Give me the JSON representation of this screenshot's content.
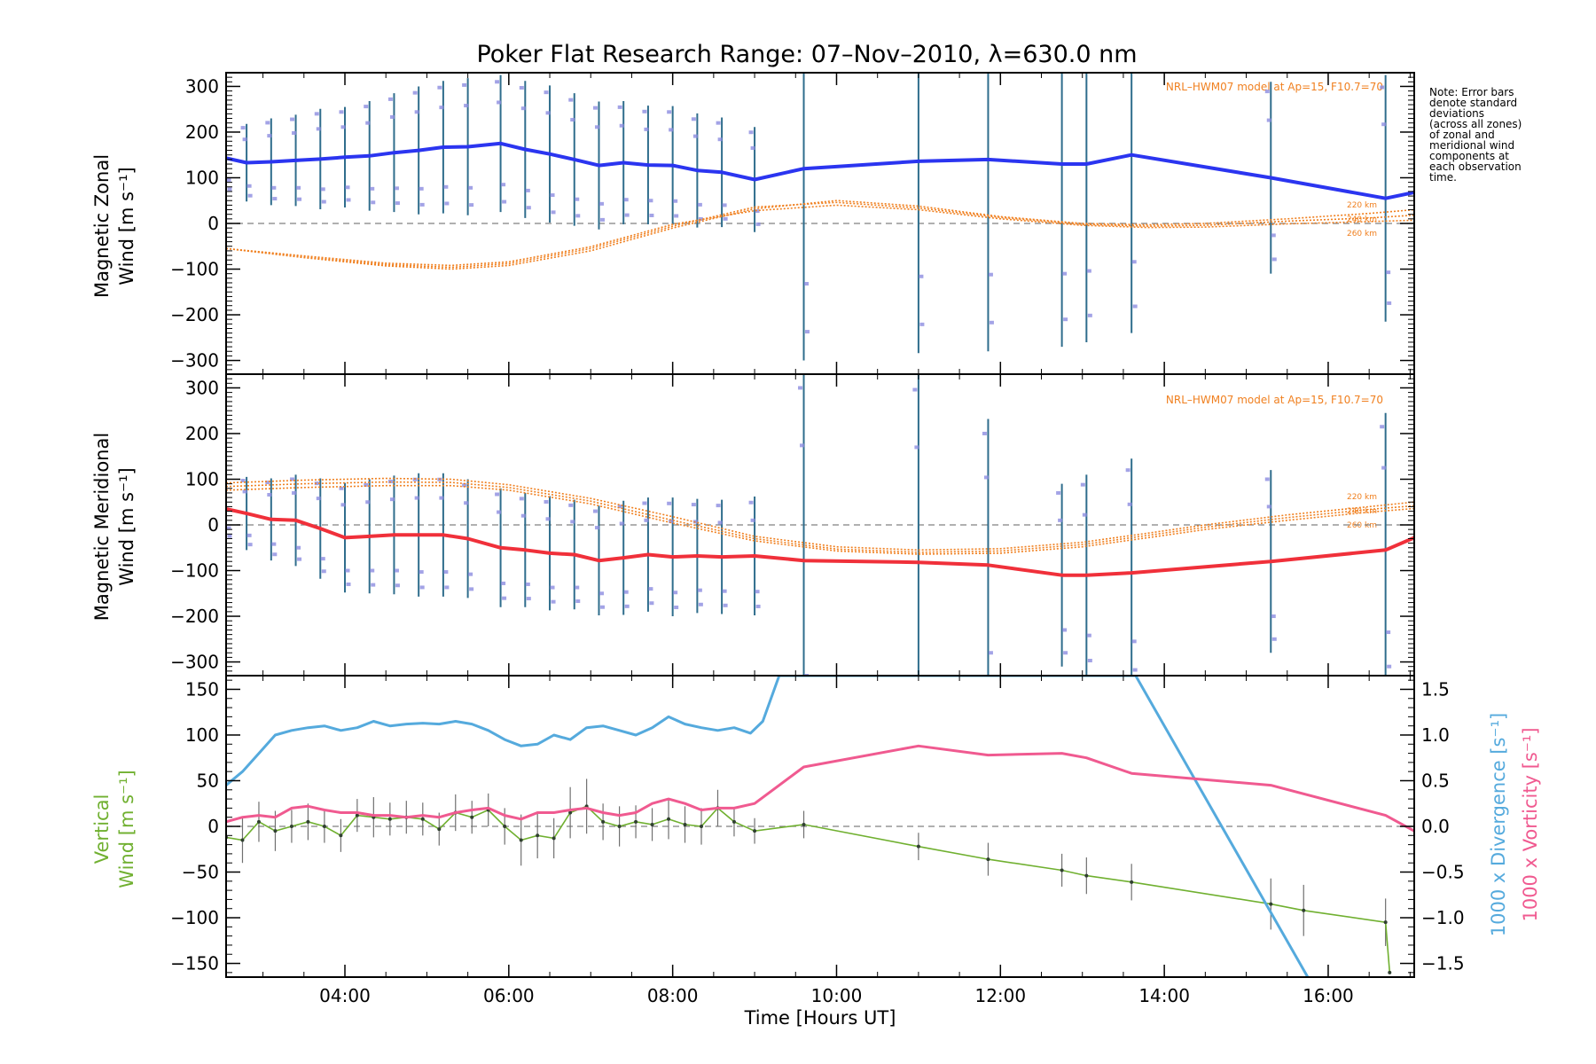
{
  "figure": {
    "title": "Poker Flat Research Range: 07–Nov–2010, λ=630.0 nm",
    "note_lines": [
      "Note: Error bars",
      "denote standard",
      "deviations",
      "(across all zones)",
      "of zonal and",
      "meridional wind",
      "components at",
      "each observation",
      "time."
    ],
    "xlabel": "Time [Hours UT]",
    "xticks": [
      {
        "v": 4,
        "label": "04:00"
      },
      {
        "v": 6,
        "label": "06:00"
      },
      {
        "v": 8,
        "label": "08:00"
      },
      {
        "v": 10,
        "label": "10:00"
      },
      {
        "v": 12,
        "label": "12:00"
      },
      {
        "v": 14,
        "label": "14:00"
      },
      {
        "v": 16,
        "label": "16:00"
      }
    ],
    "xlim": [
      2.55,
      17.05
    ],
    "colors": {
      "zonal": "#2b35f0",
      "meridional": "#f0303a",
      "vertical": "#70b030",
      "divergence": "#55aadd",
      "vorticity": "#f05a90",
      "model": "#f08020",
      "errorbar": "#2f6d8c",
      "scatter": "#8c8ce0",
      "zero": "#808080"
    }
  },
  "chart_data": [
    {
      "type": "line",
      "panel": "zonal",
      "ylabel_lines": [
        "Magnetic Zonal",
        "Wind [m s⁻¹]"
      ],
      "ylim": [
        -330,
        330
      ],
      "yticks": [
        {
          "v": 300,
          "label": "300"
        },
        {
          "v": 200,
          "label": "200"
        },
        {
          "v": 100,
          "label": "100"
        },
        {
          "v": 0,
          "label": "0"
        },
        {
          "v": -100,
          "label": "−100"
        },
        {
          "v": -200,
          "label": "−200"
        },
        {
          "v": -300,
          "label": "−300"
        }
      ],
      "model_label": "NRL–HWM07 model at Ap=15, F10.7=70",
      "altitude_labels": [
        "220 km",
        "240 km",
        "260 km"
      ],
      "series": [
        {
          "name": "Magnetic Zonal Wind",
          "x": [
            2.55,
            2.8,
            3.1,
            3.4,
            3.7,
            4.0,
            4.3,
            4.6,
            4.9,
            5.2,
            5.5,
            5.9,
            6.2,
            6.5,
            6.8,
            7.1,
            7.4,
            7.7,
            8.0,
            8.3,
            8.6,
            9.0,
            9.6,
            11.0,
            11.85,
            12.75,
            13.05,
            13.6,
            15.3,
            16.7,
            17.05
          ],
          "y": [
            143,
            133,
            135,
            138,
            141,
            145,
            148,
            155,
            160,
            167,
            168,
            175,
            162,
            152,
            140,
            127,
            133,
            128,
            127,
            116,
            112,
            96,
            120,
            136,
            140,
            130,
            130,
            150,
            100,
            55,
            68
          ],
          "err": [
            80,
            85,
            95,
            100,
            110,
            110,
            120,
            130,
            140,
            145,
            150,
            150,
            150,
            150,
            145,
            140,
            135,
            130,
            130,
            125,
            120,
            115,
            420,
            420,
            420,
            400,
            390,
            390,
            210,
            270,
            0
          ]
        },
        {
          "name": "HWM07 220 km",
          "x": [
            2.55,
            3.5,
            4.5,
            5.3,
            6.0,
            7.0,
            8.0,
            9.0,
            10.0,
            11.0,
            12.0,
            13.0,
            13.8,
            14.5,
            15.5,
            16.5,
            17.05
          ],
          "y": [
            -55,
            -75,
            -93,
            -100,
            -92,
            -60,
            -10,
            32,
            50,
            38,
            15,
            0,
            -3,
            0,
            10,
            22,
            30
          ]
        },
        {
          "name": "HWM07 240 km",
          "x": [
            2.55,
            3.5,
            4.5,
            5.3,
            6.0,
            7.0,
            8.0,
            9.0,
            10.0,
            11.0,
            12.0,
            13.0,
            13.8,
            14.5,
            15.5,
            16.5,
            17.05
          ],
          "y": [
            -55,
            -73,
            -90,
            -96,
            -88,
            -55,
            -6,
            36,
            46,
            34,
            13,
            -2,
            -6,
            -4,
            5,
            12,
            18
          ]
        },
        {
          "name": "HWM07 260 km",
          "x": [
            2.55,
            3.5,
            4.5,
            5.3,
            6.0,
            7.0,
            8.0,
            9.0,
            10.0,
            11.0,
            12.0,
            13.0,
            13.8,
            14.5,
            15.5,
            16.5,
            17.05
          ],
          "y": [
            -55,
            -71,
            -87,
            -92,
            -84,
            -51,
            -2,
            28,
            40,
            30,
            10,
            -4,
            -9,
            -8,
            -1,
            4,
            7
          ]
        }
      ]
    },
    {
      "type": "line",
      "panel": "meridional",
      "ylabel_lines": [
        "Magnetic Meridional",
        "Wind [m s⁻¹]"
      ],
      "ylim": [
        -330,
        330
      ],
      "yticks": [
        {
          "v": 300,
          "label": "300"
        },
        {
          "v": 200,
          "label": "200"
        },
        {
          "v": 100,
          "label": "100"
        },
        {
          "v": 0,
          "label": "0"
        },
        {
          "v": -100,
          "label": "−100"
        },
        {
          "v": -200,
          "label": "−200"
        },
        {
          "v": -300,
          "label": "−300"
        }
      ],
      "model_label": "NRL–HWM07 model at Ap=15, F10.7=70",
      "altitude_labels": [
        "220 km",
        "240 km",
        "260 km"
      ],
      "series": [
        {
          "name": "Magnetic Meridional Wind",
          "x": [
            2.55,
            2.8,
            3.1,
            3.4,
            3.7,
            4.0,
            4.3,
            4.6,
            4.9,
            5.2,
            5.5,
            5.9,
            6.2,
            6.5,
            6.8,
            7.1,
            7.4,
            7.7,
            8.0,
            8.3,
            8.6,
            9.0,
            9.6,
            11.0,
            11.85,
            12.75,
            13.05,
            13.6,
            15.3,
            16.7,
            17.05
          ],
          "y": [
            35,
            25,
            12,
            10,
            -8,
            -28,
            -25,
            -22,
            -22,
            -22,
            -30,
            -50,
            -55,
            -62,
            -65,
            -78,
            -72,
            -65,
            -70,
            -68,
            -70,
            -68,
            -78,
            -82,
            -88,
            -110,
            -110,
            -105,
            -80,
            -55,
            -28
          ],
          "err": [
            70,
            80,
            90,
            100,
            110,
            120,
            125,
            130,
            135,
            135,
            130,
            130,
            125,
            125,
            120,
            120,
            125,
            125,
            130,
            125,
            125,
            130,
            420,
            420,
            320,
            200,
            220,
            250,
            200,
            300,
            0
          ]
        },
        {
          "name": "HWM07 220 km",
          "x": [
            2.55,
            3.5,
            4.5,
            5.3,
            6.0,
            7.0,
            8.0,
            9.0,
            10.0,
            11.0,
            12.0,
            13.0,
            13.8,
            14.5,
            15.5,
            16.5,
            17.05
          ],
          "y": [
            92,
            98,
            102,
            100,
            88,
            58,
            18,
            -25,
            -48,
            -55,
            -52,
            -38,
            -18,
            0,
            22,
            40,
            50
          ]
        },
        {
          "name": "HWM07 240 km",
          "x": [
            2.55,
            3.5,
            4.5,
            5.3,
            6.0,
            7.0,
            8.0,
            9.0,
            10.0,
            11.0,
            12.0,
            13.0,
            13.8,
            14.5,
            15.5,
            16.5,
            17.05
          ],
          "y": [
            84,
            90,
            94,
            93,
            82,
            52,
            10,
            -30,
            -53,
            -60,
            -57,
            -43,
            -23,
            -5,
            16,
            34,
            42
          ]
        },
        {
          "name": "HWM07 260 km",
          "x": [
            2.55,
            3.5,
            4.5,
            5.3,
            6.0,
            7.0,
            8.0,
            9.0,
            10.0,
            11.0,
            12.0,
            13.0,
            13.8,
            14.5,
            15.5,
            16.5,
            17.05
          ],
          "y": [
            76,
            82,
            86,
            86,
            76,
            46,
            4,
            -35,
            -57,
            -64,
            -62,
            -48,
            -28,
            -10,
            10,
            28,
            36
          ]
        }
      ]
    },
    {
      "type": "line",
      "panel": "vertical",
      "ylabel_lines": [
        "Vertical",
        "Wind [m s⁻¹]"
      ],
      "ylim": [
        -165,
        165
      ],
      "yticks": [
        {
          "v": 150,
          "label": "150"
        },
        {
          "v": 100,
          "label": "100"
        },
        {
          "v": 50,
          "label": "50"
        },
        {
          "v": 0,
          "label": "0"
        },
        {
          "v": -50,
          "label": "−50"
        },
        {
          "v": -100,
          "label": "−100"
        },
        {
          "v": -150,
          "label": "−150"
        }
      ],
      "y2label": {
        "left_part": "1000 x Divergence [s⁻¹]",
        "right_part": "1000 x Vorticity [s⁻¹]"
      },
      "y2lim": [
        -1.65,
        1.65
      ],
      "y2ticks": [
        {
          "v": 1.5,
          "label": "1.5"
        },
        {
          "v": 1.0,
          "label": "1.0"
        },
        {
          "v": 0.5,
          "label": "0.5"
        },
        {
          "v": 0.0,
          "label": "0.0"
        },
        {
          "v": -0.5,
          "label": "−0.5"
        },
        {
          "v": -1.0,
          "label": "−1.0"
        },
        {
          "v": -1.5,
          "label": "−1.5"
        }
      ],
      "series": [
        {
          "name": "Vertical Wind",
          "axis": "left",
          "x": [
            2.55,
            2.75,
            2.95,
            3.15,
            3.35,
            3.55,
            3.75,
            3.95,
            4.15,
            4.35,
            4.55,
            4.75,
            4.95,
            5.15,
            5.35,
            5.55,
            5.75,
            5.95,
            6.15,
            6.35,
            6.55,
            6.75,
            6.95,
            7.15,
            7.35,
            7.55,
            7.75,
            7.95,
            8.15,
            8.35,
            8.55,
            8.75,
            9.0,
            9.6,
            11.0,
            11.85,
            12.75,
            13.05,
            13.6,
            15.3,
            15.7,
            16.7,
            16.75
          ],
          "y": [
            -12,
            -15,
            5,
            -5,
            0,
            5,
            0,
            -10,
            12,
            10,
            8,
            10,
            8,
            -3,
            15,
            10,
            18,
            0,
            -15,
            -10,
            -13,
            15,
            22,
            5,
            0,
            5,
            2,
            8,
            2,
            0,
            20,
            5,
            -5,
            2,
            -22,
            -36,
            -48,
            -54,
            -61,
            -85,
            -92,
            -105,
            -160
          ],
          "err": [
            18,
            25,
            22,
            22,
            18,
            20,
            18,
            18,
            18,
            22,
            18,
            18,
            18,
            18,
            20,
            18,
            18,
            20,
            28,
            25,
            22,
            28,
            30,
            20,
            22,
            18,
            18,
            22,
            20,
            20,
            20,
            16,
            14,
            15,
            15,
            18,
            18,
            20,
            20,
            28,
            28,
            26,
            0
          ]
        },
        {
          "name": "1000 x Divergence",
          "axis": "right",
          "x": [
            2.55,
            2.75,
            2.95,
            3.15,
            3.35,
            3.55,
            3.75,
            3.95,
            4.15,
            4.35,
            4.55,
            4.75,
            4.95,
            5.15,
            5.35,
            5.55,
            5.75,
            5.95,
            6.15,
            6.35,
            6.55,
            6.75,
            6.95,
            7.15,
            7.35,
            7.55,
            7.75,
            7.95,
            8.15,
            8.35,
            8.55,
            8.75,
            8.95,
            9.1,
            9.3,
            13.65,
            15.75
          ],
          "y": [
            0.45,
            0.6,
            0.8,
            1.0,
            1.05,
            1.08,
            1.1,
            1.05,
            1.08,
            1.15,
            1.1,
            1.12,
            1.13,
            1.12,
            1.15,
            1.12,
            1.05,
            0.95,
            0.88,
            0.9,
            1.0,
            0.95,
            1.08,
            1.1,
            1.05,
            1.0,
            1.08,
            1.2,
            1.12,
            1.08,
            1.05,
            1.08,
            1.02,
            1.15,
            1.65,
            1.65,
            -1.65
          ]
        },
        {
          "name": "1000 x Vorticity",
          "axis": "right",
          "x": [
            2.55,
            2.75,
            2.95,
            3.15,
            3.35,
            3.55,
            3.75,
            3.95,
            4.15,
            4.35,
            4.55,
            4.75,
            4.95,
            5.15,
            5.35,
            5.55,
            5.75,
            5.95,
            6.15,
            6.35,
            6.55,
            6.75,
            6.95,
            7.15,
            7.35,
            7.55,
            7.75,
            7.95,
            8.15,
            8.35,
            8.55,
            8.75,
            9.0,
            9.6,
            11.0,
            11.85,
            12.75,
            13.05,
            13.6,
            15.3,
            16.7,
            17.05
          ],
          "y": [
            0.05,
            0.1,
            0.12,
            0.1,
            0.2,
            0.22,
            0.18,
            0.15,
            0.15,
            0.12,
            0.12,
            0.1,
            0.12,
            0.1,
            0.15,
            0.18,
            0.2,
            0.12,
            0.08,
            0.15,
            0.15,
            0.18,
            0.2,
            0.15,
            0.12,
            0.15,
            0.25,
            0.3,
            0.25,
            0.18,
            0.2,
            0.2,
            0.25,
            0.65,
            0.88,
            0.78,
            0.8,
            0.75,
            0.58,
            0.45,
            0.12,
            -0.05
          ]
        }
      ]
    }
  ]
}
